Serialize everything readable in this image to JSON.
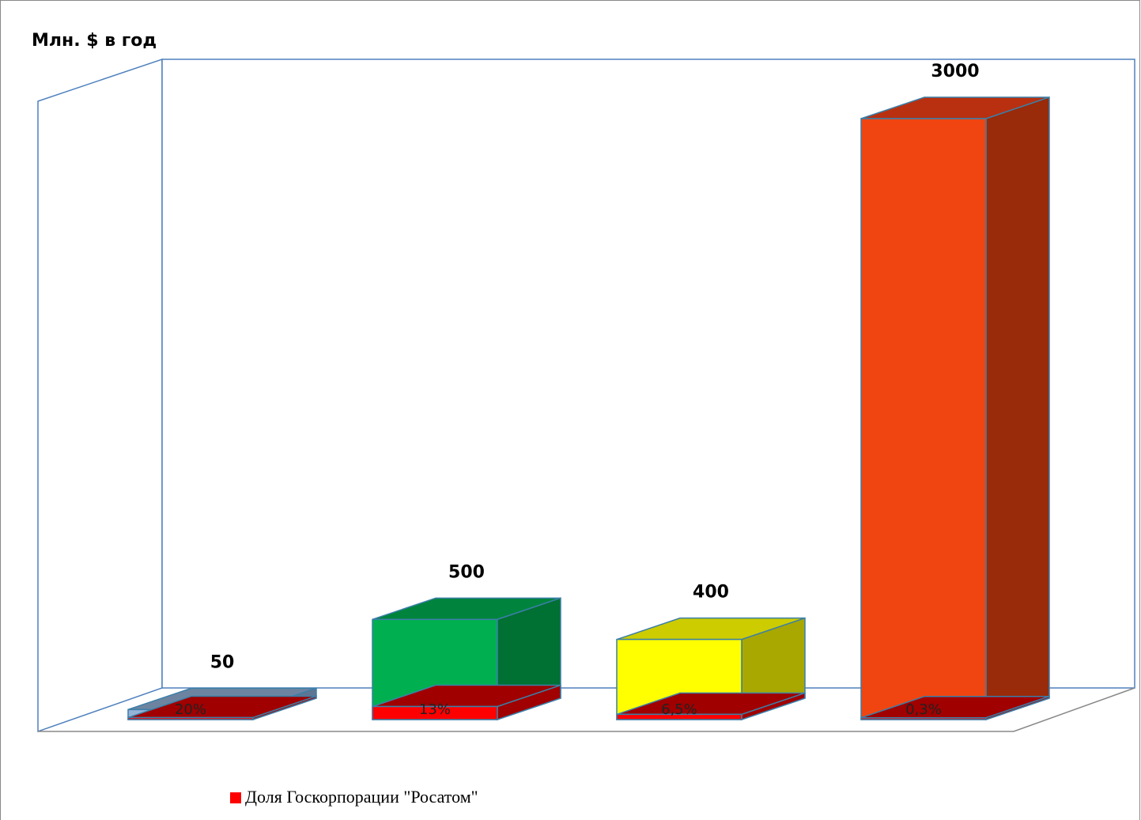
{
  "chart_data": {
    "type": "bar3d",
    "ylabel": "Млн. $ в год",
    "values": [
      50,
      500,
      400,
      3000
    ],
    "colors": [
      [
        "#95b3d7",
        "#6d84a0",
        "#5f7591"
      ],
      [
        "#00b050",
        "#00843d",
        "#007033"
      ],
      [
        "#ffff00",
        "#cccc00",
        "#a8a800"
      ],
      [
        "#f04511",
        "#b83010",
        "#992a0a"
      ]
    ],
    "share": {
      "name": "Доля Госкорпорации \"Росатом\"",
      "color": "#ff0000",
      "side_color": "#a00000",
      "values": [
        20,
        13,
        6.5,
        0.3
      ],
      "value_labels": [
        "20%",
        "13%",
        "6,5%",
        "0,3%"
      ]
    },
    "ylim": [
      0,
      3000
    ]
  }
}
